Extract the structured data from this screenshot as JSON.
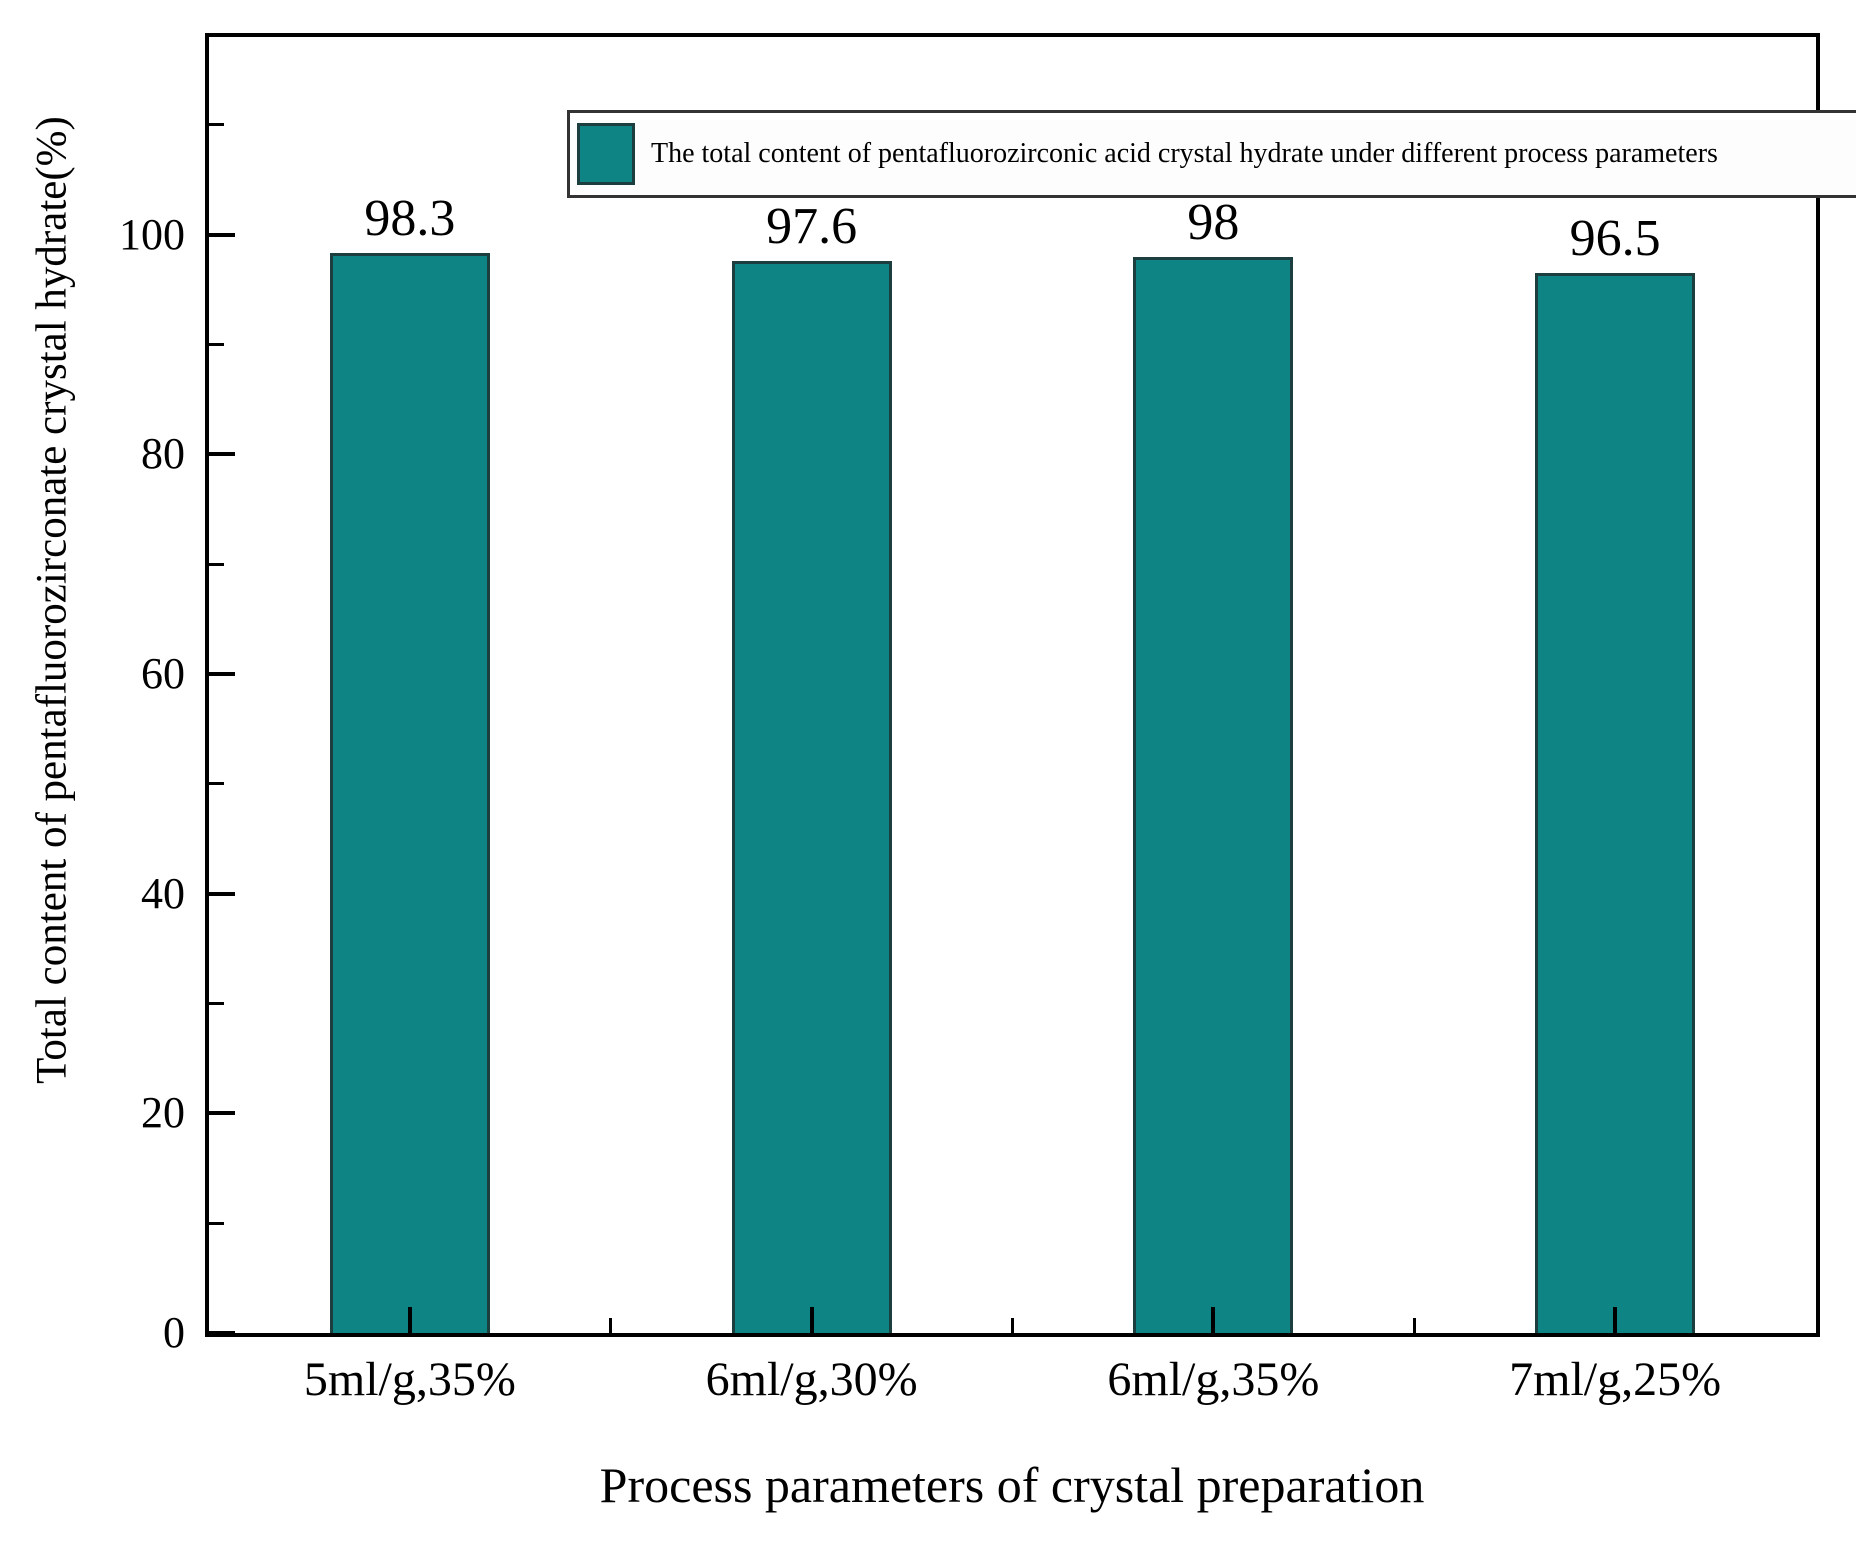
{
  "chart_data": {
    "type": "bar",
    "categories": [
      "5ml/g,35%",
      "6ml/g,30%",
      "6ml/g,35%",
      "7ml/g,25%"
    ],
    "values": [
      98.3,
      97.6,
      98,
      96.5
    ],
    "value_labels": [
      "98.3",
      "97.6",
      "98",
      "96.5"
    ],
    "legend_label": "The total content of pentafluorozirconic acid crystal hydrate under different process parameters",
    "xlabel": "Process parameters of crystal preparation",
    "ylabel": "Total content of pentafluorozirconate crystal hydrate(%)",
    "ylim": [
      0,
      118
    ],
    "yticks_major": [
      0,
      20,
      40,
      60,
      80,
      100
    ],
    "yticks_minor": [
      10,
      30,
      50,
      70,
      90,
      110
    ],
    "bar_color": "#0E8484",
    "bar_edge_color": "#1C3E3E",
    "axis_color": "#000000",
    "text_color": "#000000",
    "legend_position": "top",
    "grid": false
  }
}
